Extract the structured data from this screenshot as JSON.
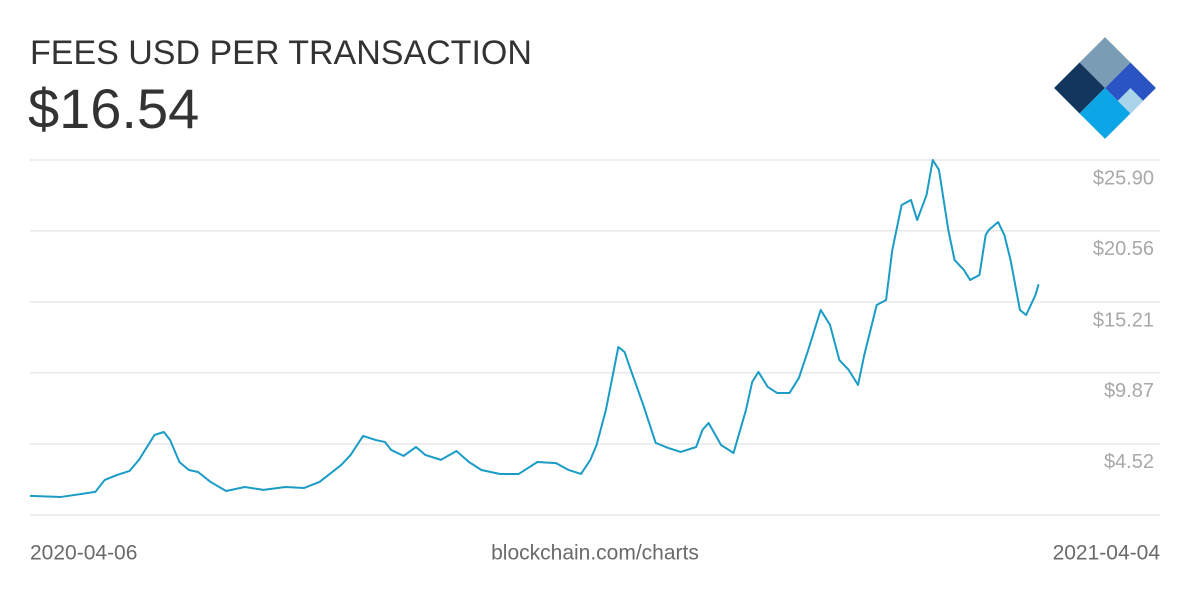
{
  "header": {
    "title": "FEES USD PER TRANSACTION",
    "current_value": "$16.54"
  },
  "footer": {
    "source": "blockchain.com/charts"
  },
  "chart_data": {
    "type": "line",
    "x": [
      "2020-04-06",
      "2020-04-16",
      "2020-04-27",
      "2020-04-30",
      "2020-05-04",
      "2020-05-08",
      "2020-05-11",
      "2020-05-16",
      "2020-05-19",
      "2020-05-21",
      "2020-05-24",
      "2020-05-27",
      "2020-05-30",
      "2020-06-03",
      "2020-06-08",
      "2020-06-14",
      "2020-06-20",
      "2020-06-27",
      "2020-07-03",
      "2020-07-08",
      "2020-07-15",
      "2020-07-18",
      "2020-07-22",
      "2020-07-26",
      "2020-07-29",
      "2020-07-31",
      "2020-08-04",
      "2020-08-08",
      "2020-08-11",
      "2020-08-16",
      "2020-08-21",
      "2020-08-25",
      "2020-08-29",
      "2020-09-04",
      "2020-09-10",
      "2020-09-16",
      "2020-09-22",
      "2020-09-26",
      "2020-09-30",
      "2020-10-03",
      "2020-10-05",
      "2020-10-08",
      "2020-10-12",
      "2020-10-14",
      "2020-10-16",
      "2020-10-20",
      "2020-10-24",
      "2020-10-28",
      "2020-11-01",
      "2020-11-06",
      "2020-11-08",
      "2020-11-10",
      "2020-11-14",
      "2020-11-18",
      "2020-11-22",
      "2020-11-24",
      "2020-11-26",
      "2020-11-29",
      "2020-12-02",
      "2020-12-06",
      "2020-12-09",
      "2020-12-12",
      "2020-12-16",
      "2020-12-19",
      "2020-12-22",
      "2020-12-25",
      "2020-12-28",
      "2020-12-30",
      "2021-01-03",
      "2021-01-06",
      "2021-01-08",
      "2021-01-11",
      "2021-01-14",
      "2021-01-16",
      "2021-01-19",
      "2021-01-21",
      "2021-01-23",
      "2021-01-26",
      "2021-01-28",
      "2021-01-31",
      "2021-02-02",
      "2021-02-05",
      "2021-02-07",
      "2021-02-08",
      "2021-02-11",
      "2021-02-13",
      "2021-02-15",
      "2021-02-18",
      "2021-02-20",
      "2021-02-23",
      "2021-02-24"
    ],
    "series": [
      {
        "color": "#1a9cc6",
        "values": [
          0.61,
          0.53,
          0.91,
          1.81,
          2.19,
          2.49,
          3.32,
          5.2,
          5.42,
          4.82,
          3.16,
          2.56,
          2.41,
          1.66,
          0.98,
          1.28,
          1.06,
          1.28,
          1.2,
          1.66,
          2.94,
          3.69,
          5.12,
          4.82,
          4.67,
          4.07,
          3.62,
          4.29,
          3.69,
          3.32,
          3.99,
          3.16,
          2.56,
          2.26,
          2.26,
          3.16,
          3.08,
          2.56,
          2.26,
          3.32,
          4.44,
          7.08,
          11.82,
          11.44,
          10.09,
          7.46,
          4.6,
          4.22,
          3.92,
          4.29,
          5.57,
          6.1,
          4.44,
          3.84,
          7.08,
          9.19,
          9.94,
          8.81,
          8.36,
          8.36,
          9.49,
          11.6,
          14.61,
          13.48,
          10.84,
          10.09,
          8.96,
          11.22,
          14.98,
          15.36,
          19.12,
          22.51,
          22.89,
          21.38,
          23.26,
          25.9,
          25.15,
          20.63,
          18.37,
          17.62,
          16.87,
          17.24,
          20.25,
          20.63,
          21.23,
          20.25,
          18.37,
          14.61,
          14.23,
          15.74,
          16.54
        ]
      }
    ],
    "xlim": [
      "2020-04-06",
      "2021-04-04"
    ],
    "ylim": [
      -0.83,
      25.9
    ],
    "yticks": [
      {
        "value": 4.52,
        "label": "$4.52"
      },
      {
        "value": 9.87,
        "label": "$9.87"
      },
      {
        "value": 15.21,
        "label": "$15.21"
      },
      {
        "value": 20.56,
        "label": "$20.56"
      },
      {
        "value": 25.9,
        "label": "$25.90"
      }
    ],
    "grid": true
  }
}
